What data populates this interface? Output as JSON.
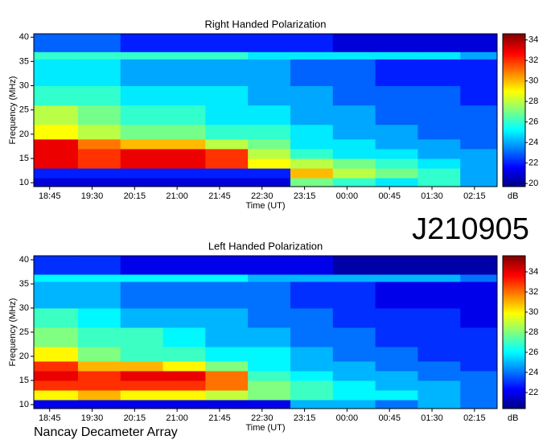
{
  "label": "J210905",
  "footer": "Nancay Decameter Array",
  "chart_data": [
    {
      "type": "heatmap",
      "title": "Right Handed Polarization",
      "x_label": "Time (UT)",
      "y_label": "Frequency (MHz)",
      "colorbar_label": "dB",
      "colormap": "jet",
      "xlim": [
        18.47,
        26.65
      ],
      "xticks": [
        {
          "value": 18.75,
          "label": "18:45"
        },
        {
          "value": 19.5,
          "label": "19:30"
        },
        {
          "value": 20.25,
          "label": "20:15"
        },
        {
          "value": 21,
          "label": "21:00"
        },
        {
          "value": 21.75,
          "label": "21:45"
        },
        {
          "value": 22.5,
          "label": "22:30"
        },
        {
          "value": 23.25,
          "label": "23:15"
        },
        {
          "value": 24,
          "label": "00:00"
        },
        {
          "value": 24.75,
          "label": "00:45"
        },
        {
          "value": 25.5,
          "label": "01:30"
        },
        {
          "value": 26.25,
          "label": "02:15"
        }
      ],
      "ylim": [
        9.2,
        40.7
      ],
      "yticks": [
        10,
        15,
        20,
        25,
        30,
        35,
        40
      ],
      "zlim": [
        19.7,
        34.6
      ],
      "zticks": [
        20,
        22,
        24,
        26,
        28,
        30,
        32,
        34
      ],
      "x_bins": [
        18.47,
        19.25,
        20,
        20.75,
        21.5,
        22.25,
        23,
        23.75,
        24.5,
        25.25,
        26,
        26.65
      ],
      "y_bins": [
        9.2,
        11,
        13,
        15,
        17,
        19,
        22,
        26,
        30,
        35.5,
        37,
        40.7
      ],
      "values": [
        [
          21,
          21,
          21,
          21,
          21,
          21,
          27,
          26,
          25,
          26,
          24
        ],
        [
          22,
          22,
          22,
          22,
          22,
          22,
          30,
          28,
          27,
          26,
          24
        ],
        [
          33,
          32,
          33,
          33,
          32,
          29,
          28,
          27,
          26,
          25,
          24
        ],
        [
          33,
          32,
          33,
          33,
          32,
          28,
          26,
          25,
          25,
          24,
          24
        ],
        [
          33,
          31,
          30,
          30,
          28,
          27,
          25,
          25,
          24,
          24,
          23
        ],
        [
          29,
          28,
          27,
          27,
          26,
          26,
          25,
          24,
          24,
          23,
          23
        ],
        [
          28,
          27,
          26,
          26,
          25,
          25,
          24,
          24,
          23,
          23,
          23
        ],
        [
          26,
          26,
          25,
          25,
          25,
          24,
          24,
          23,
          23,
          23,
          22
        ],
        [
          25,
          25,
          24,
          24,
          24,
          24,
          23,
          23,
          22,
          22,
          22
        ],
        [
          26,
          26,
          26,
          26,
          26,
          25,
          25,
          25,
          25,
          25,
          24
        ],
        [
          23,
          23,
          22,
          22,
          22,
          22,
          22,
          21,
          21,
          21,
          21
        ]
      ]
    },
    {
      "type": "heatmap",
      "title": "Left Handed Polarization",
      "x_label": "Time (UT)",
      "y_label": "Frequency (MHz)",
      "colorbar_label": "dB",
      "colormap": "jet",
      "xlim": [
        18.47,
        26.65
      ],
      "xticks": [
        {
          "value": 18.75,
          "label": "18:45"
        },
        {
          "value": 19.5,
          "label": "19:30"
        },
        {
          "value": 20.25,
          "label": "20:15"
        },
        {
          "value": 21,
          "label": "21:00"
        },
        {
          "value": 21.75,
          "label": "21:45"
        },
        {
          "value": 22.5,
          "label": "22:30"
        },
        {
          "value": 23.25,
          "label": "23:15"
        },
        {
          "value": 24,
          "label": "00:00"
        },
        {
          "value": 24.75,
          "label": "00:45"
        },
        {
          "value": 25.5,
          "label": "01:30"
        },
        {
          "value": 26.25,
          "label": "02:15"
        }
      ],
      "ylim": [
        9.17,
        40.83
      ],
      "yticks": [
        10,
        15,
        20,
        25,
        30,
        35,
        40
      ],
      "zlim": [
        20.4,
        35.6
      ],
      "zticks": [
        22,
        24,
        26,
        28,
        30,
        32,
        34
      ],
      "x_bins": [
        18.47,
        19.25,
        20,
        20.75,
        21.5,
        22.25,
        23,
        23.75,
        24.5,
        25.25,
        26,
        26.65
      ],
      "y_bins": [
        9.17,
        11,
        13,
        15,
        17,
        19,
        22,
        26,
        30,
        35.5,
        37,
        40.83
      ],
      "values": [
        [
          22,
          22,
          22,
          22,
          22,
          22,
          25,
          25,
          24,
          25,
          24
        ],
        [
          30,
          31,
          30,
          30,
          29,
          28,
          27,
          26,
          26,
          25,
          24
        ],
        [
          33,
          33,
          33,
          33,
          32,
          28,
          27,
          26,
          25,
          25,
          24
        ],
        [
          34,
          33,
          34,
          34,
          32,
          27,
          26,
          25,
          25,
          24,
          24
        ],
        [
          33,
          31,
          31,
          30,
          28,
          26,
          25,
          25,
          24,
          24,
          23
        ],
        [
          30,
          28,
          27,
          27,
          26,
          26,
          25,
          24,
          24,
          23,
          23
        ],
        [
          28,
          27,
          27,
          26,
          25,
          25,
          24,
          24,
          23,
          23,
          23
        ],
        [
          27,
          26,
          25,
          25,
          25,
          24,
          24,
          23,
          23,
          23,
          22
        ],
        [
          25,
          25,
          24,
          24,
          24,
          24,
          23,
          23,
          22,
          22,
          22
        ],
        [
          26,
          26,
          26,
          26,
          26,
          25,
          25,
          25,
          25,
          25,
          24
        ],
        [
          23,
          23,
          22,
          22,
          22,
          22,
          22,
          21,
          21,
          21,
          21
        ]
      ]
    }
  ]
}
